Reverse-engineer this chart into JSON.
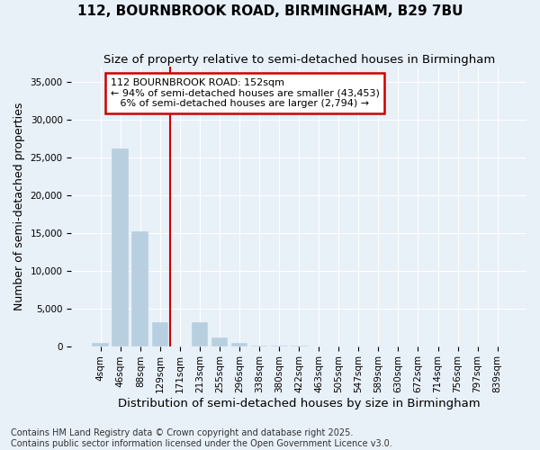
{
  "title": "112, BOURNBROOK ROAD, BIRMINGHAM, B29 7BU",
  "subtitle": "Size of property relative to semi-detached houses in Birmingham",
  "xlabel": "Distribution of semi-detached houses by size in Birmingham",
  "ylabel": "Number of semi-detached properties",
  "footnote1": "Contains HM Land Registry data © Crown copyright and database right 2025.",
  "footnote2": "Contains public sector information licensed under the Open Government Licence v3.0.",
  "categories": [
    "4sqm",
    "46sqm",
    "88sqm",
    "129sqm",
    "171sqm",
    "213sqm",
    "255sqm",
    "296sqm",
    "338sqm",
    "380sqm",
    "422sqm",
    "463sqm",
    "505sqm",
    "547sqm",
    "589sqm",
    "630sqm",
    "672sqm",
    "714sqm",
    "756sqm",
    "797sqm",
    "839sqm"
  ],
  "values": [
    400,
    26200,
    15200,
    3200,
    0,
    3200,
    1200,
    400,
    100,
    50,
    20,
    10,
    5,
    5,
    3,
    3,
    2,
    2,
    1,
    1,
    1
  ],
  "bar_color": "#b8cfe0",
  "vline_color": "#cc0000",
  "vline_x": 4,
  "annotation_line1": "112 BOURNBROOK ROAD: 152sqm",
  "annotation_line2": "← 94% of semi-detached houses are smaller (43,453)",
  "annotation_line3": "   6% of semi-detached houses are larger (2,794) →",
  "annotation_box_color": "#cc0000",
  "ylim": [
    0,
    37000
  ],
  "yticks": [
    0,
    5000,
    10000,
    15000,
    20000,
    25000,
    30000,
    35000
  ],
  "bg_color": "#e8f0f8",
  "grid_color": "#ffffff",
  "title_fontsize": 11,
  "subtitle_fontsize": 9.5,
  "axis_label_fontsize": 9,
  "tick_fontsize": 7.5,
  "annotation_fontsize": 8,
  "footnote_fontsize": 7
}
